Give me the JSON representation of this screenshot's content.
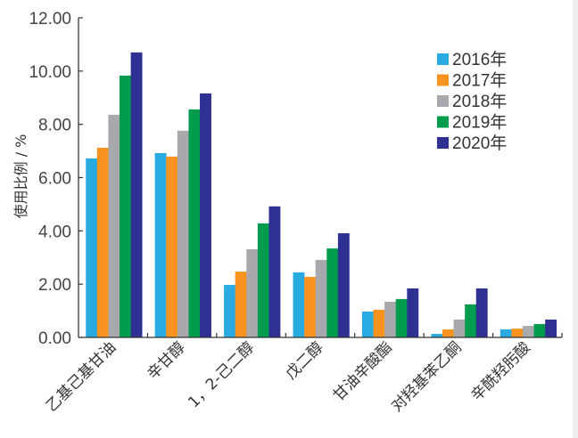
{
  "chart_data": {
    "type": "bar",
    "title": "",
    "xlabel": "",
    "ylabel": "使用比例 / %",
    "ylim": [
      0,
      12
    ],
    "yticks": [
      "0.00",
      "2.00",
      "4.00",
      "6.00",
      "8.00",
      "10.00",
      "12.00"
    ],
    "ytick_values": [
      0,
      2,
      4,
      6,
      8,
      10,
      12
    ],
    "grid": false,
    "legend_position": "top-right",
    "categories": [
      "乙基己基甘油",
      "辛甘醇",
      "1，2-己二醇",
      "戊二醇",
      "甘油辛酸酯",
      "对羟基苯乙酮",
      "辛酰羟肟酸"
    ],
    "series": [
      {
        "name": "2016年",
        "color": "#29abe2",
        "values": [
          6.72,
          6.92,
          1.97,
          2.44,
          0.97,
          0.13,
          0.3
        ]
      },
      {
        "name": "2017年",
        "color": "#f7931e",
        "values": [
          7.12,
          6.79,
          2.47,
          2.27,
          1.04,
          0.3,
          0.33
        ]
      },
      {
        "name": "2018年",
        "color": "#a7a9ac",
        "values": [
          8.36,
          7.76,
          3.31,
          2.91,
          1.34,
          0.67,
          0.43
        ]
      },
      {
        "name": "2019年",
        "color": "#009c4e",
        "values": [
          9.83,
          8.56,
          4.28,
          3.34,
          1.44,
          1.24,
          0.5
        ]
      },
      {
        "name": "2020年",
        "color": "#2e3192",
        "values": [
          10.7,
          9.16,
          4.92,
          3.91,
          1.84,
          1.84,
          0.67
        ]
      }
    ]
  }
}
